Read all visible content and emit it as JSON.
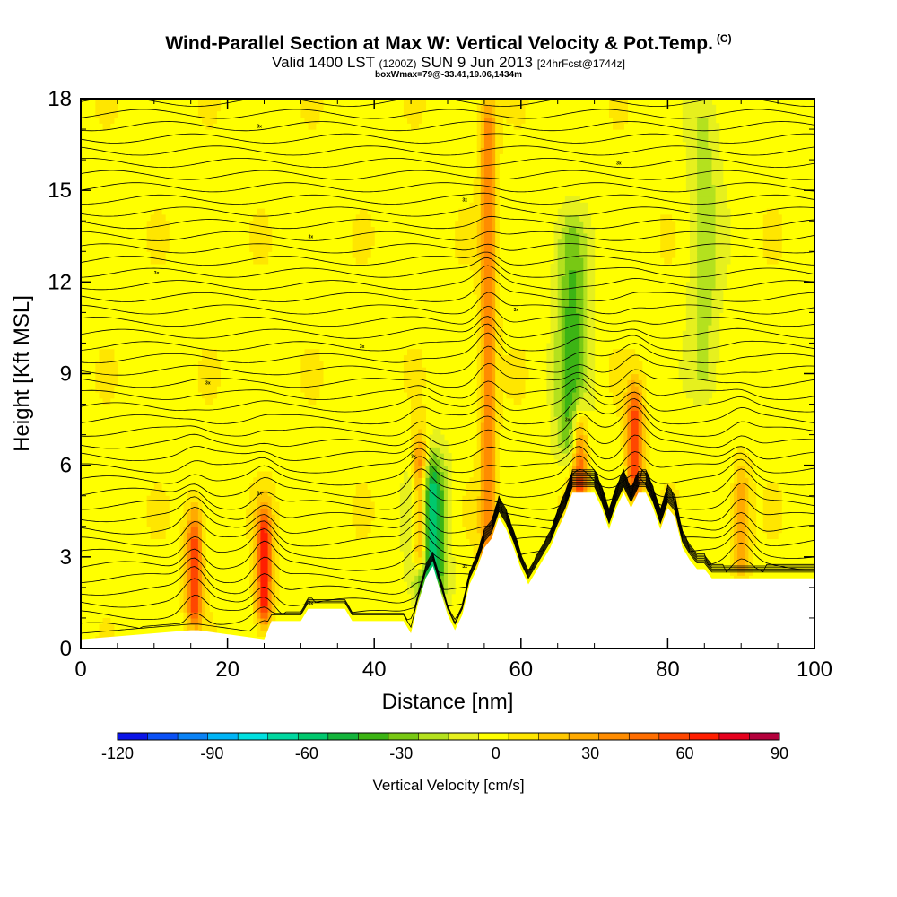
{
  "title": "Wind-Parallel Section at Max W: Vertical Velocity & Pot.Temp.",
  "copyright_mark": "(C)",
  "subtitle_valid": "Valid 1400 LST",
  "subtitle_utc": "(1200Z)",
  "subtitle_date": "SUN 9 Jun 2013",
  "subtitle_fcst": "[24hrFcst@1744z]",
  "subtitle2": "boxWmax=79@-33.41,19.06,1434m",
  "chart_data": {
    "type": "heatmap",
    "title": "Wind-Parallel Section at Max W: Vertical Velocity & Pot.Temp.",
    "xlabel": "Distance [nm]",
    "ylabel": "Height [Kft MSL]",
    "xlim": [
      0,
      100
    ],
    "ylim": [
      0,
      18
    ],
    "xticks": [
      "0",
      "20",
      "40",
      "60",
      "80",
      "100"
    ],
    "xtick_values": [
      0,
      20,
      40,
      60,
      80,
      100
    ],
    "yticks": [
      "0",
      "3",
      "6",
      "9",
      "12",
      "15",
      "18"
    ],
    "ytick_values": [
      0,
      3,
      6,
      9,
      12,
      15,
      18
    ],
    "colorbar": {
      "label": "Vertical Velocity [cm/s]",
      "range": [
        -120,
        90
      ],
      "step": 10,
      "tick_labels": [
        "-120",
        "-90",
        "-60",
        "-30",
        "0",
        "30",
        "60",
        "90"
      ],
      "tick_values": [
        -120,
        -90,
        -60,
        -30,
        0,
        30,
        60,
        90
      ],
      "colors": [
        "#0a14e8",
        "#0a50f5",
        "#0a82f5",
        "#00b4f5",
        "#00e0e0",
        "#00d7a0",
        "#00c86e",
        "#14b43c",
        "#3cb414",
        "#78c814",
        "#b4e11e",
        "#e6f01e",
        "#ffff00",
        "#ffe600",
        "#ffc800",
        "#ffaa00",
        "#ff8c00",
        "#ff6e00",
        "#ff4600",
        "#ff1e00",
        "#e6001e",
        "#b4003c"
      ]
    },
    "terrain_profile": {
      "x": [
        0,
        15,
        16,
        25,
        26,
        30,
        31,
        36,
        37,
        44,
        45,
        46,
        47,
        48,
        49,
        50,
        51,
        52,
        53,
        54,
        55,
        56,
        57,
        58,
        59,
        60,
        61,
        62,
        63,
        64,
        65,
        66,
        67,
        68,
        69,
        70,
        71,
        72,
        73,
        74,
        75,
        76,
        77,
        78,
        79,
        80,
        81,
        82,
        83,
        84,
        85,
        86,
        87,
        100
      ],
      "height_kft": [
        0.3,
        0.6,
        0.6,
        0.3,
        0.9,
        0.9,
        1.3,
        1.3,
        0.9,
        0.9,
        0.5,
        1.5,
        2.3,
        2.7,
        1.9,
        1.1,
        0.6,
        1.1,
        2.1,
        2.6,
        3.3,
        3.6,
        4.3,
        3.9,
        3.3,
        2.6,
        2.1,
        2.5,
        2.9,
        3.3,
        3.9,
        4.4,
        5.1,
        5.1,
        5.1,
        5.1,
        4.6,
        3.9,
        4.6,
        5.1,
        4.6,
        5.1,
        5.1,
        4.6,
        3.9,
        4.6,
        4.3,
        3.3,
        2.9,
        2.6,
        2.6,
        2.3,
        2.3,
        2.3
      ]
    },
    "updraft_cores": [
      {
        "x": 15.5,
        "z_bottom": 1.5,
        "z_top": 3.5,
        "w": 60
      },
      {
        "x": 25,
        "z_bottom": 1.5,
        "z_top": 3.5,
        "w": 70
      },
      {
        "x": 46.3,
        "z_bottom": 3.2,
        "z_top": 5.8,
        "w": 70
      },
      {
        "x": 55.5,
        "z_bottom": 2.6,
        "z_top": 17,
        "w": 40
      },
      {
        "x": 68,
        "z_bottom": 5.5,
        "z_top": 6.8,
        "w": 60
      },
      {
        "x": 75.5,
        "z_bottom": 5.6,
        "z_top": 7.5,
        "w": 60
      },
      {
        "x": 90,
        "z_bottom": 3,
        "z_top": 5,
        "w": 30
      }
    ],
    "downdraft_zones": [
      {
        "x": 47.5,
        "z_bottom": 2.5,
        "z_top": 5,
        "w": -70
      },
      {
        "x": 67,
        "z_bottom": 7,
        "z_top": 13,
        "w": -40
      },
      {
        "x": 85,
        "z_bottom": 9,
        "z_top": 17,
        "w": -20
      }
    ],
    "pot_temp_contour_label": "3x"
  }
}
